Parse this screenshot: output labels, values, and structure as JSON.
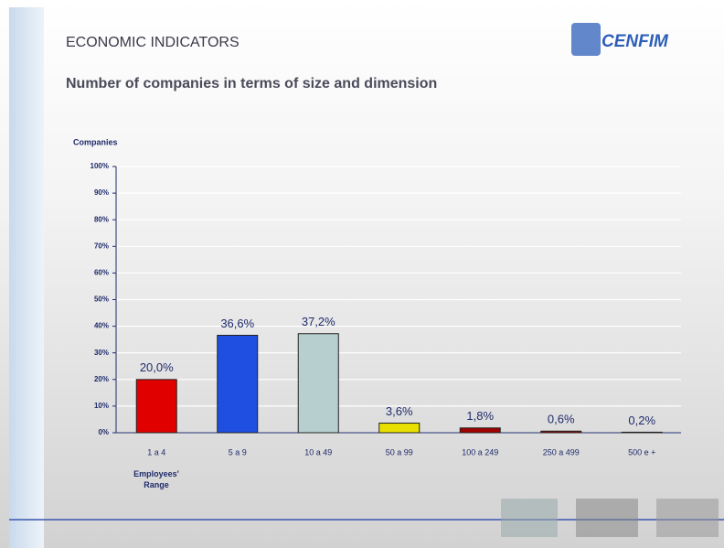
{
  "header": {
    "title": "ECONOMIC INDICATORS",
    "subtitle": "Number of companies in terms of size and dimension",
    "logo": "CENFIM"
  },
  "chart_data": {
    "type": "bar",
    "y_axis_label": "Companies",
    "x_axis_label": "Employees' Range",
    "categories": [
      "1 a 4",
      "5 a 9",
      "10 a 49",
      "50 a 99",
      "100 a 249",
      "250 a 499",
      "500 e +"
    ],
    "values": [
      20.0,
      36.6,
      37.2,
      3.6,
      1.8,
      0.6,
      0.2
    ],
    "value_labels": [
      "20,0%",
      "36,6%",
      "37,2%",
      "3,6%",
      "1,8%",
      "0,6%",
      "0,2%"
    ],
    "colors": [
      "#e00000",
      "#1f4fe0",
      "#b8cfcf",
      "#e8e000",
      "#a00000",
      "#a00000",
      "#7a2020"
    ],
    "ylim": [
      0,
      100
    ],
    "yticks": [
      {
        "value": 0,
        "label": "0%"
      },
      {
        "value": 10,
        "label": "10%"
      },
      {
        "value": 20,
        "label": "20%"
      },
      {
        "value": 30,
        "label": "30%"
      },
      {
        "value": 40,
        "label": "40%"
      },
      {
        "value": 50,
        "label": "50%"
      },
      {
        "value": 60,
        "label": "60%"
      },
      {
        "value": 70,
        "label": "70%"
      },
      {
        "value": 80,
        "label": "80%"
      },
      {
        "value": 90,
        "label": "90%"
      },
      {
        "value": 100,
        "label": "100%"
      }
    ],
    "grid": true
  }
}
